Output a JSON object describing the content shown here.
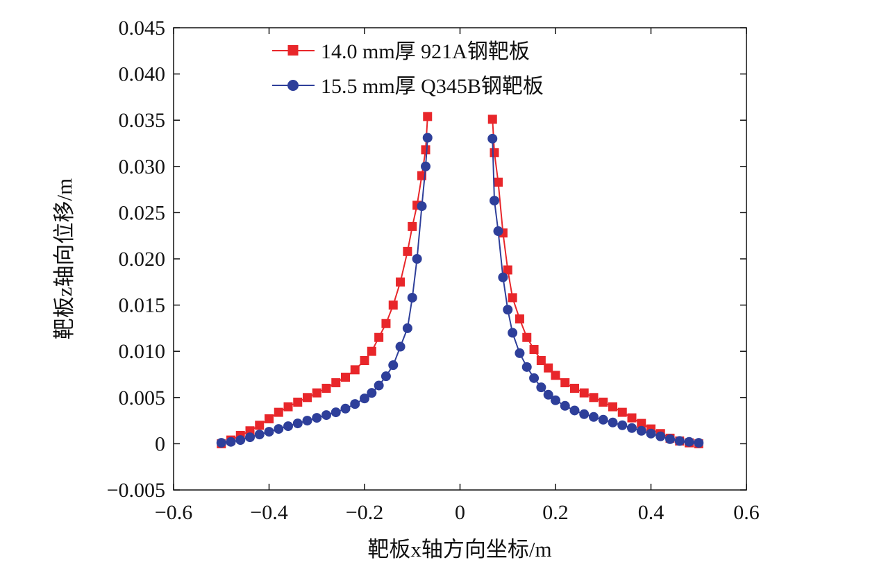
{
  "chart_data": {
    "type": "line",
    "xlabel": "靶板x轴方向坐标/m",
    "ylabel": "靶板z轴向位移/m",
    "xlim": [
      -0.6,
      0.6
    ],
    "ylim": [
      -0.005,
      0.045
    ],
    "xticks": [
      -0.6,
      -0.4,
      -0.2,
      0,
      0.2,
      0.4,
      0.6
    ],
    "xtick_labels": [
      "−0.6",
      "−0.4",
      "−0.2",
      "0",
      "0.2",
      "0.4",
      "0.6"
    ],
    "yticks": [
      -0.005,
      0,
      0.005,
      0.01,
      0.015,
      0.02,
      0.025,
      0.03,
      0.035,
      0.04,
      0.045
    ],
    "ytick_labels": [
      "−0.005",
      "0",
      "0.005",
      "0.010",
      "0.015",
      "0.020",
      "0.025",
      "0.030",
      "0.035",
      "0.040",
      "0.045"
    ],
    "grid": false,
    "legend_position": "top-center",
    "series": [
      {
        "name": "14.0 mm厚 921A钢靶板",
        "color": "#e8262a",
        "marker": "square",
        "segments": [
          {
            "x": [
              -0.5,
              -0.48,
              -0.46,
              -0.44,
              -0.42,
              -0.4,
              -0.38,
              -0.36,
              -0.34,
              -0.32,
              -0.3,
              -0.28,
              -0.26,
              -0.24,
              -0.22,
              -0.2,
              -0.185,
              -0.17,
              -0.155,
              -0.14,
              -0.125,
              -0.11,
              -0.1,
              -0.09,
              -0.08,
              -0.072,
              -0.068
            ],
            "y": [
              0.0,
              0.0004,
              0.0009,
              0.0014,
              0.002,
              0.0027,
              0.0034,
              0.004,
              0.0045,
              0.005,
              0.0055,
              0.006,
              0.0066,
              0.0072,
              0.008,
              0.009,
              0.01,
              0.0115,
              0.013,
              0.015,
              0.0175,
              0.0208,
              0.0235,
              0.0258,
              0.029,
              0.0318,
              0.0354
            ]
          },
          {
            "x": [
              0.068,
              0.072,
              0.08,
              0.09,
              0.1,
              0.11,
              0.125,
              0.14,
              0.155,
              0.17,
              0.185,
              0.2,
              0.22,
              0.24,
              0.26,
              0.28,
              0.3,
              0.32,
              0.34,
              0.36,
              0.38,
              0.4,
              0.42,
              0.44,
              0.46,
              0.48,
              0.5
            ],
            "y": [
              0.0351,
              0.0315,
              0.0283,
              0.0228,
              0.0188,
              0.0158,
              0.0135,
              0.0115,
              0.0102,
              0.009,
              0.0082,
              0.0074,
              0.0066,
              0.006,
              0.0055,
              0.005,
              0.0045,
              0.004,
              0.0034,
              0.0028,
              0.0022,
              0.0016,
              0.0011,
              0.0006,
              0.0003,
              0.0001,
              0.0
            ]
          }
        ]
      },
      {
        "name": "15.5 mm厚 Q345B钢靶板",
        "color": "#2e3f9a",
        "marker": "circle",
        "segments": [
          {
            "x": [
              -0.5,
              -0.48,
              -0.46,
              -0.44,
              -0.42,
              -0.4,
              -0.38,
              -0.36,
              -0.34,
              -0.32,
              -0.3,
              -0.28,
              -0.26,
              -0.24,
              -0.22,
              -0.2,
              -0.185,
              -0.17,
              -0.155,
              -0.14,
              -0.125,
              -0.11,
              -0.1,
              -0.09,
              -0.08,
              -0.072,
              -0.068
            ],
            "y": [
              0.0001,
              0.0002,
              0.0004,
              0.0007,
              0.001,
              0.0013,
              0.0016,
              0.0019,
              0.0022,
              0.0025,
              0.0028,
              0.0031,
              0.0034,
              0.0038,
              0.0043,
              0.0049,
              0.0055,
              0.0063,
              0.0073,
              0.0085,
              0.0105,
              0.0125,
              0.0158,
              0.02,
              0.0257,
              0.03,
              0.0331
            ]
          },
          {
            "x": [
              0.068,
              0.072,
              0.08,
              0.09,
              0.1,
              0.11,
              0.125,
              0.14,
              0.155,
              0.17,
              0.185,
              0.2,
              0.22,
              0.24,
              0.26,
              0.28,
              0.3,
              0.32,
              0.34,
              0.36,
              0.38,
              0.4,
              0.42,
              0.44,
              0.46,
              0.48,
              0.5
            ],
            "y": [
              0.033,
              0.0263,
              0.023,
              0.018,
              0.0145,
              0.012,
              0.0098,
              0.0083,
              0.0071,
              0.0061,
              0.0053,
              0.0047,
              0.0041,
              0.0036,
              0.0032,
              0.0029,
              0.0026,
              0.0023,
              0.002,
              0.0017,
              0.0014,
              0.0011,
              0.0008,
              0.0005,
              0.0003,
              0.0002,
              0.0001
            ]
          }
        ]
      }
    ]
  }
}
